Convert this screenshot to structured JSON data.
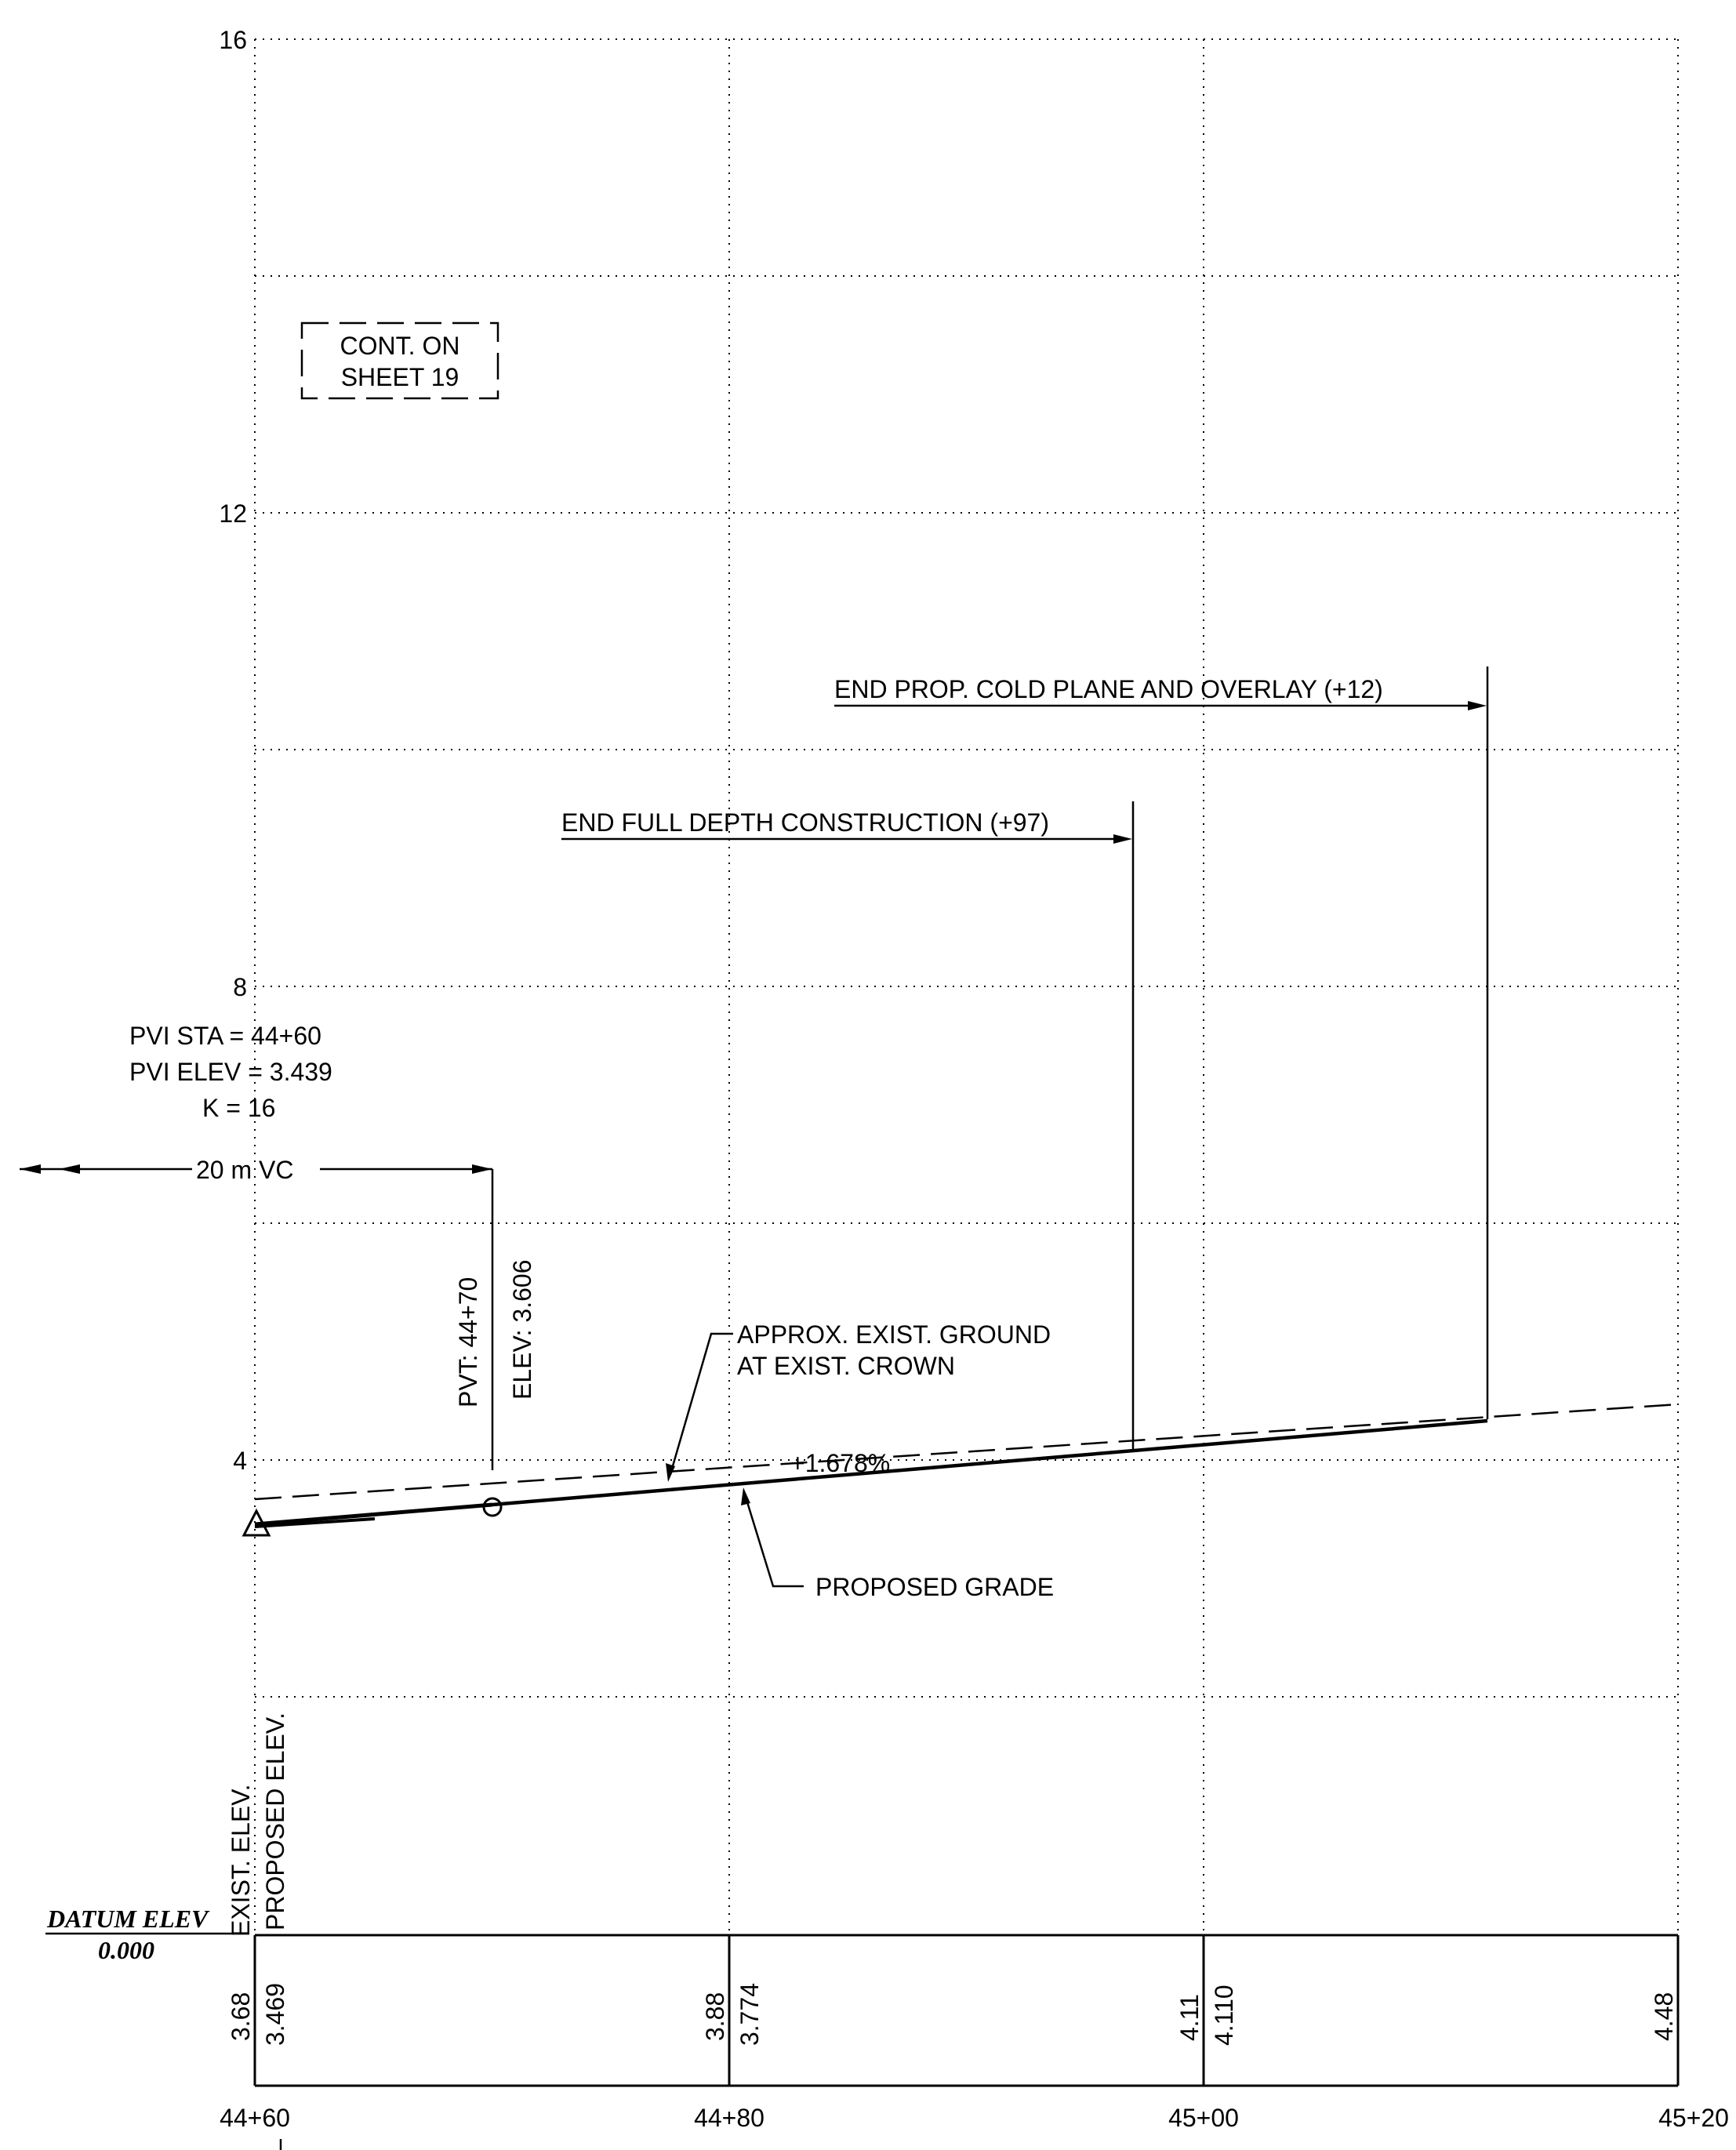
{
  "y_axis": {
    "ticks": [
      "16",
      "12",
      "8",
      "4"
    ]
  },
  "x_axis": {
    "ticks": [
      "44+60",
      "44+80",
      "45+00",
      "45+20"
    ]
  },
  "note_box": {
    "line1": "CONT. ON",
    "line2": "SHEET 19"
  },
  "pvi": {
    "sta": "PVI STA = 44+60",
    "elev": "PVI ELEV = 3.439",
    "k": "K = 16",
    "vc": "20 m VC"
  },
  "pvt": {
    "station": "PVT: 44+70",
    "elev": "ELEV: 3.606"
  },
  "callouts": {
    "cold_plane": "END PROP. COLD PLANE AND OVERLAY (+12)",
    "full_depth": "END FULL DEPTH CONSTRUCTION (+97)",
    "exist_ground_line1": "APPROX. EXIST. GROUND",
    "exist_ground_line2": "AT EXIST. CROWN",
    "grade_percent": "+1.678%",
    "proposed_grade": "PROPOSED GRADE"
  },
  "table": {
    "row_labels": {
      "exist": "EXIST. ELEV.",
      "proposed": "PROPOSED ELEV."
    },
    "datum_title": "DATUM ELEV",
    "datum_value": "0.000",
    "columns": [
      {
        "exist": "3.68",
        "proposed": "3.469"
      },
      {
        "exist": "3.88",
        "proposed": "3.774"
      },
      {
        "exist": "4.11",
        "proposed": "4.110"
      },
      {
        "exist": "4.48",
        "proposed": ""
      }
    ]
  },
  "colors": {
    "line": "#000000",
    "background": "#ffffff"
  }
}
